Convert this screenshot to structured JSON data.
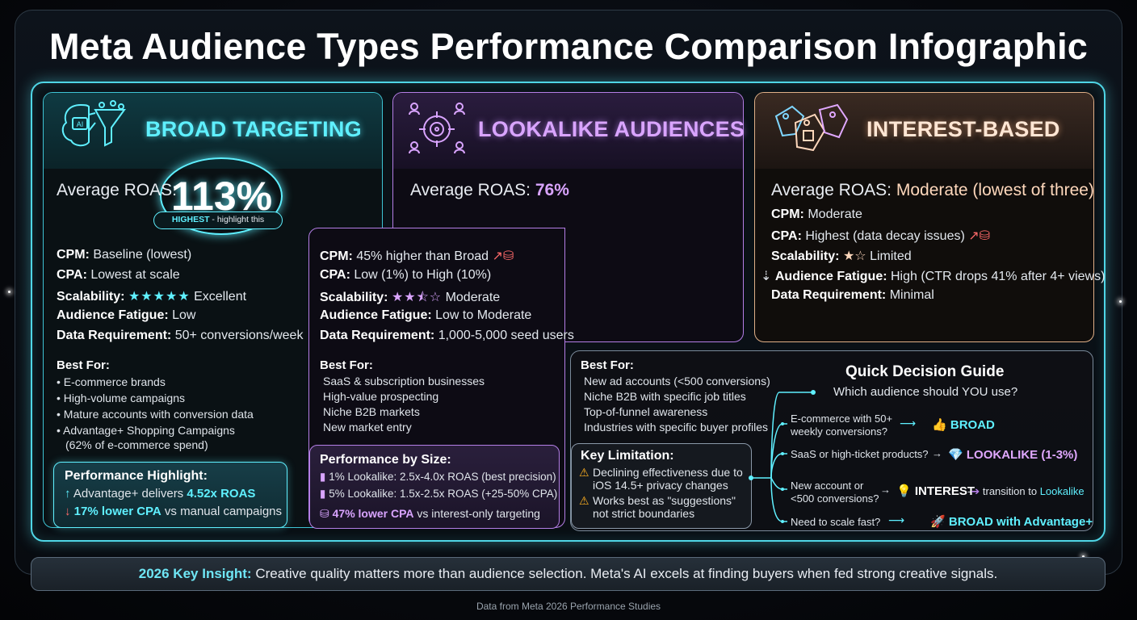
{
  "title": "Meta Audience Types Performance Comparison Infographic",
  "broad": {
    "heading": "BROAD TARGETING",
    "icon": "ai-brain-funnel-icon",
    "roas_label": "Average ROAS:",
    "roas_value": "113%",
    "highlight_pill_strong": "HIGHEST",
    "highlight_pill_rest": " - highlight this",
    "stats": [
      {
        "k": "CPM:",
        "v": " Baseline (lowest)"
      },
      {
        "k": "CPA:",
        "v": " Lowest at scale"
      },
      {
        "k": "Scalability:",
        "v": "Excellent",
        "stars": 5
      },
      {
        "k": "Audience Fatigue:",
        "v": " Low"
      },
      {
        "k": "Data Requirement:",
        "v": " 50+ conversions/week"
      }
    ],
    "best_for_title": "Best For:",
    "best_for": [
      "E-commerce brands",
      "High-volume campaigns",
      "Mature accounts with conversion data",
      "Advantage+ Shopping Campaigns",
      "(62% of e-commerce spend)"
    ],
    "highlight_title": "Performance Highlight:",
    "highlight_1_pre": "Advantage+ delivers ",
    "highlight_1_val": "4.52x ROAS",
    "highlight_2_val": "17% lower CPA",
    "highlight_2_post": " vs manual campaigns"
  },
  "lookalike": {
    "heading": "LOOKALIKE AUDIENCES",
    "icon": "target-people-icon",
    "roas_label": "Average ROAS: ",
    "roas_value": "76%",
    "stats": [
      {
        "k": "CPM:",
        "v": " 45% higher than Broad"
      },
      {
        "k": "CPA:",
        "v": " Low (1%) to High (10%)"
      },
      {
        "k": "Scalability:",
        "v": "Moderate",
        "stars": 2.5
      },
      {
        "k": "Audience Fatigue:",
        "v": " Low to Moderate"
      },
      {
        "k": "Data Requirement:",
        "v": " 1,000-5,000 seed users"
      }
    ],
    "best_for_title": "Best For:",
    "best_for": [
      "SaaS & subscription businesses",
      "High-value prospecting",
      "Niche B2B markets",
      "New market entry"
    ],
    "perf_title": "Performance by Size:",
    "perf_1": "1% Lookalike: 2.5x-4.0x ROAS (best precision)",
    "perf_2": "5% Lookalike: 1.5x-2.5x ROAS (+25-50% CPA)",
    "perf_3_val": "47% lower CPA",
    "perf_3_post": " vs interest-only targeting"
  },
  "interest": {
    "heading": "INTEREST-BASED",
    "icon": "tags-icon",
    "roas_label": "Average ROAS: ",
    "roas_value": "Moderate (lowest of three)",
    "stats": [
      {
        "k": "CPM:",
        "v": " Moderate"
      },
      {
        "k": "CPA:",
        "v": " Highest (data decay issues)"
      },
      {
        "k": "Scalability:",
        "v": "Limited",
        "stars": 1
      },
      {
        "k": "Audience Fatigue:",
        "v": " High (CTR drops 41% after 4+ views)"
      },
      {
        "k": "Data Requirement:",
        "v": " Minimal"
      }
    ],
    "best_for_title": "Best For:",
    "best_for": [
      "New ad accounts (<500 conversions)",
      "Niche B2B with specific job titles",
      "Top-of-funnel awareness",
      "Industries with specific buyer profiles"
    ],
    "limit_title": "Key Limitation:",
    "limit_1a": "Declining effectiveness due to",
    "limit_1b": "iOS 14.5+ privacy changes",
    "limit_2a": "Works best as \"suggestions\"",
    "limit_2b": "not strict boundaries"
  },
  "guide": {
    "title": "Quick Decision Guide",
    "question": "Which audience should YOU use?",
    "items": [
      {
        "q1": "E-commerce with 50+",
        "q2": "weekly conversions?",
        "result": "BROAD"
      },
      {
        "q1": "SaaS or high-ticket products?",
        "q2": "",
        "result": "LOOKALIKE (1-3%)"
      },
      {
        "q1": "New account or",
        "q2": "<500 conversions?",
        "result": "INTEREST",
        "extra": "transition to ",
        "extra_val": "Lookalike"
      },
      {
        "q1": "Need to scale fast?",
        "q2": "",
        "result": "BROAD with Advantage+"
      }
    ]
  },
  "insight_label": "2026 Key Insight:",
  "insight_text": " Creative quality matters more than audience selection. Meta's AI excels at finding buyers when fed strong creative signals.",
  "footer": "Data from Meta 2026 Performance Studies",
  "colors": {
    "cyan": "#5ff0ff",
    "purple": "#d9a4ff",
    "peach": "#ffd8bc",
    "red": "#ff6a6a"
  }
}
